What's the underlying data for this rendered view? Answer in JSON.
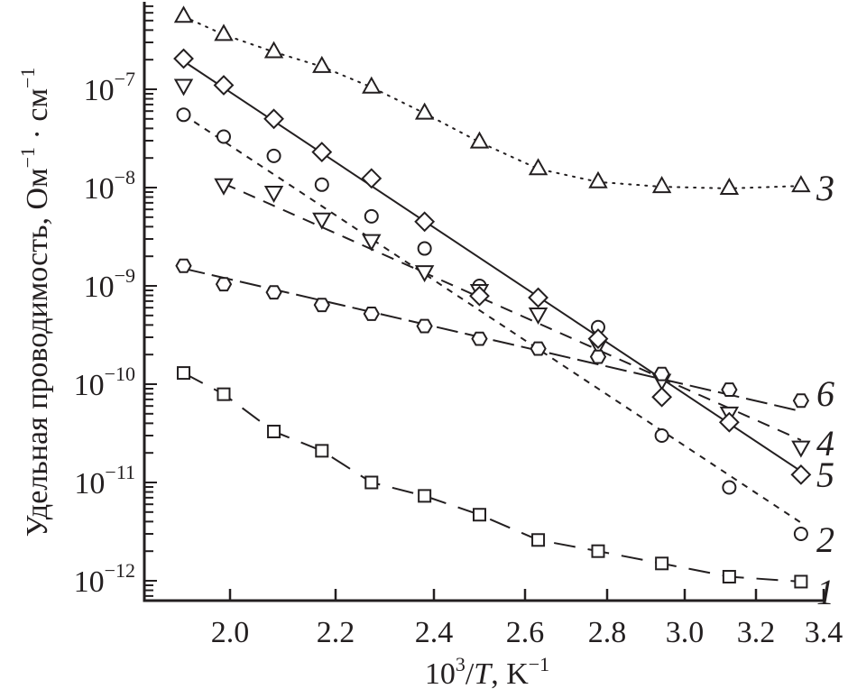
{
  "chart_data": {
    "type": "scatter",
    "title": "",
    "xlabel": {
      "base": "10",
      "sup": "3",
      "mid": "/",
      "var": "T",
      "unit": ", K",
      "unit_sup": "−1"
    },
    "ylabel": {
      "text": "Удельная проводимость, Ом",
      "sup1": "−1",
      "mid": " · см",
      "sup2": "−1"
    },
    "x_scale": "nonuniform",
    "y_scale": "log",
    "xlim": [
      1.88,
      3.4
    ],
    "ylim": [
      6e-13,
      8e-07
    ],
    "grid": false,
    "x_ticks": [
      "2.0",
      "2.2",
      "2.4",
      "2.6",
      "2.8",
      "3.0",
      "3.2",
      "3.4"
    ],
    "y_ticks": [
      {
        "base": "10",
        "exp": "−7",
        "value": 1e-07
      },
      {
        "base": "10",
        "exp": "−8",
        "value": 1e-08
      },
      {
        "base": "10",
        "exp": "−9",
        "value": 1e-09
      },
      {
        "base": "10",
        "exp": "−10",
        "value": 1e-10
      },
      {
        "base": "10",
        "exp": "−11",
        "value": 1e-11
      },
      {
        "base": "10",
        "exp": "−12",
        "value": 1e-12
      }
    ],
    "x": [
      1.912,
      1.988,
      2.083,
      2.174,
      2.273,
      2.381,
      2.5,
      2.632,
      2.778,
      2.941,
      3.125,
      3.333
    ],
    "series": [
      {
        "name": "1",
        "marker": "square",
        "line": "long-dash-curve",
        "values": [
          1.3e-10,
          7.9e-11,
          3.3e-11,
          2.1e-11,
          1e-11,
          7.3e-12,
          4.7e-12,
          2.6e-12,
          2e-12,
          1.5e-12,
          1.1e-12,
          9.8e-13
        ]
      },
      {
        "name": "2",
        "marker": "circle",
        "line": "short-dash-fit",
        "values": [
          5.5e-08,
          3.3e-08,
          2.1e-08,
          1.07e-08,
          5.1e-09,
          2.4e-09,
          1e-09,
          null,
          3.8e-10,
          3e-11,
          8.9e-12,
          3e-12
        ],
        "fit": {
          "x": [
            1.912,
            3.333
          ],
          "y": [
            5.5e-08,
            3.9e-12
          ]
        }
      },
      {
        "name": "3",
        "marker": "triangle-up",
        "line": "dotted-curve",
        "values": [
          5.5e-07,
          3.6e-07,
          2.4e-07,
          1.7e-07,
          1.05e-07,
          5.7e-08,
          2.9e-08,
          1.55e-08,
          1.14e-08,
          1.02e-08,
          9.8e-09,
          1.04e-08
        ]
      },
      {
        "name": "4",
        "marker": "triangle-down",
        "line": "dash-fit",
        "values": [
          1.1e-07,
          1.07e-08,
          9e-09,
          4.8e-09,
          2.9e-09,
          1.4e-09,
          9e-10,
          5.2e-10,
          2.5e-10,
          1.1e-10,
          5.1e-11,
          2.3e-11
        ],
        "fit": {
          "x": [
            1.988,
            3.333
          ],
          "y": [
            1.1e-08,
            2.7e-11
          ]
        }
      },
      {
        "name": "5",
        "marker": "diamond",
        "line": "solid-fit",
        "values": [
          2.05e-07,
          1.1e-07,
          5e-08,
          2.3e-08,
          1.24e-08,
          4.5e-09,
          7.9e-10,
          7.6e-10,
          2.9e-10,
          7.4e-11,
          4.1e-11,
          1.2e-11
        ],
        "fit": {
          "x": [
            1.912,
            3.333
          ],
          "y": [
            1.93e-07,
            1.3e-11
          ]
        }
      },
      {
        "name": "6",
        "marker": "hexagon",
        "line": "long-dash-fit",
        "values": [
          1.6e-09,
          1.04e-09,
          8.6e-10,
          6.4e-10,
          5.2e-10,
          3.9e-10,
          2.9e-10,
          2.3e-10,
          1.9e-10,
          1.27e-10,
          8.8e-11,
          6.8e-11
        ],
        "fit": {
          "x": [
            1.912,
            3.333
          ],
          "y": [
            1.5e-09,
            5.3e-11
          ]
        }
      }
    ],
    "series_labels": [
      "3",
      "6",
      "4",
      "5",
      "2",
      "1"
    ],
    "colors": {
      "ink": "#231f20",
      "background": "#ffffff"
    }
  }
}
